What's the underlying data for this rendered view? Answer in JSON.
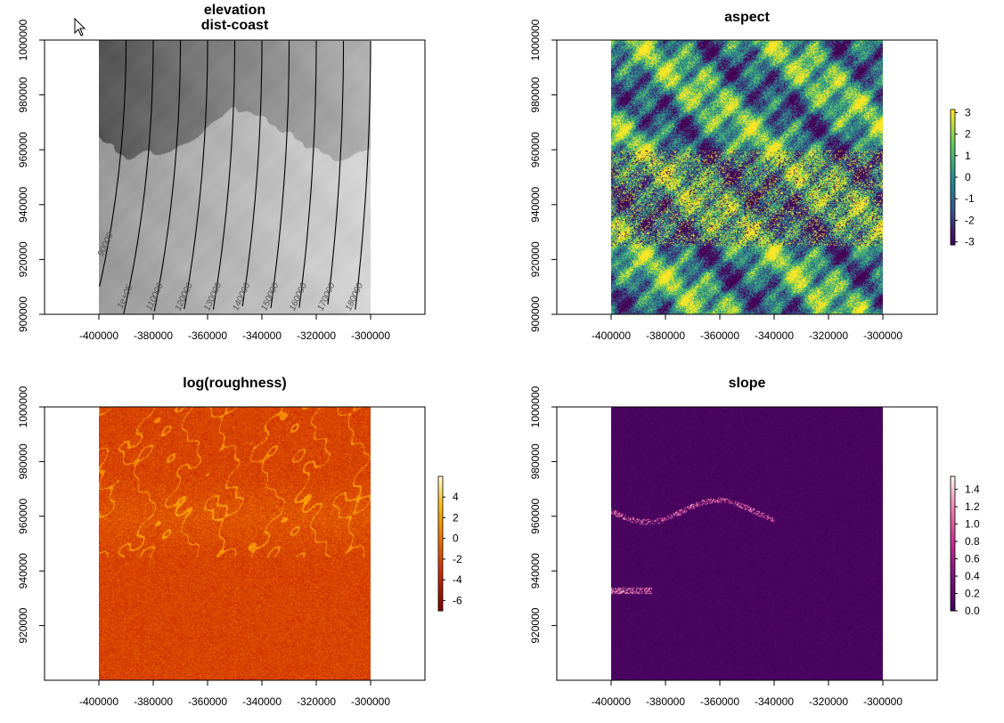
{
  "chart_data": [
    {
      "type": "heatmap",
      "title_lines": [
        "elevation",
        "dist-coast"
      ],
      "xlim": [
        -420000,
        -280000
      ],
      "ylim": [
        900000,
        1000000
      ],
      "extent": {
        "xmin": -400000,
        "xmax": -300000,
        "ymin": 900000,
        "ymax": 1000000
      },
      "x_ticks": [
        "-400000",
        "-380000",
        "-360000",
        "-340000",
        "-320000",
        "-300000"
      ],
      "y_ticks": [
        "900000",
        "920000",
        "940000",
        "960000",
        "980000",
        "1000000"
      ],
      "colormap": "grey",
      "legend": false,
      "contours": {
        "center": [
          -480000,
          1000000
        ],
        "levels": [
          80000,
          90000,
          100000,
          110000,
          120000,
          130000,
          140000,
          150000,
          160000,
          170000,
          180000
        ],
        "labels": [
          "80000",
          "90000",
          "1e+05",
          "110000",
          "120000",
          "130000",
          "140000",
          "150000",
          "160000",
          "170000",
          "180000"
        ]
      }
    },
    {
      "type": "heatmap",
      "title": "aspect",
      "xlim": [
        -420000,
        -280000
      ],
      "ylim": [
        900000,
        1000000
      ],
      "extent": {
        "xmin": -400000,
        "xmax": -300000,
        "ymin": 900000,
        "ymax": 1000000
      },
      "x_ticks": [
        "-400000",
        "-380000",
        "-360000",
        "-340000",
        "-320000",
        "-300000"
      ],
      "y_ticks": [
        "900000",
        "920000",
        "940000",
        "960000",
        "980000",
        "1000000"
      ],
      "colormap": "viridis",
      "legend": {
        "values": [
          -3,
          -2,
          -1,
          0,
          1,
          2,
          3
        ],
        "labels": [
          "-3",
          "-2",
          "-1",
          "0",
          "1",
          "2",
          "3"
        ],
        "range": [
          -3.14,
          3.14
        ]
      }
    },
    {
      "type": "heatmap",
      "title": "log(roughness)",
      "xlim": [
        -420000,
        -280000
      ],
      "ylim": [
        900000,
        1000000
      ],
      "extent": {
        "xmin": -400000,
        "xmax": -300000,
        "ymin": 900000,
        "ymax": 1000000
      },
      "x_ticks": [
        "-400000",
        "-380000",
        "-360000",
        "-340000",
        "-320000",
        "-300000"
      ],
      "y_ticks": [
        "920000",
        "940000",
        "960000",
        "980000",
        "1000000"
      ],
      "colormap": "heat",
      "legend": {
        "values": [
          -6,
          -4,
          -2,
          0,
          2,
          4
        ],
        "labels": [
          "-6",
          "-4",
          "-2",
          "0",
          "2",
          "4"
        ],
        "range": [
          -7,
          6
        ]
      }
    },
    {
      "type": "heatmap",
      "title": "slope",
      "xlim": [
        -420000,
        -280000
      ],
      "ylim": [
        900000,
        1000000
      ],
      "extent": {
        "xmin": -400000,
        "xmax": -300000,
        "ymin": 900000,
        "ymax": 1000000
      },
      "x_ticks": [
        "-400000",
        "-380000",
        "-360000",
        "-340000",
        "-320000",
        "-300000"
      ],
      "y_ticks": [
        "920000",
        "940000",
        "960000",
        "980000",
        "1000000"
      ],
      "colormap": "magma",
      "legend": {
        "values": [
          0,
          0.2,
          0.4,
          0.6,
          0.8,
          1.0,
          1.2,
          1.4
        ],
        "labels": [
          "0.0",
          "0.2",
          "0.4",
          "0.6",
          "0.8",
          "1.0",
          "1.2",
          "1.4"
        ],
        "range": [
          0,
          1.55
        ]
      }
    }
  ]
}
